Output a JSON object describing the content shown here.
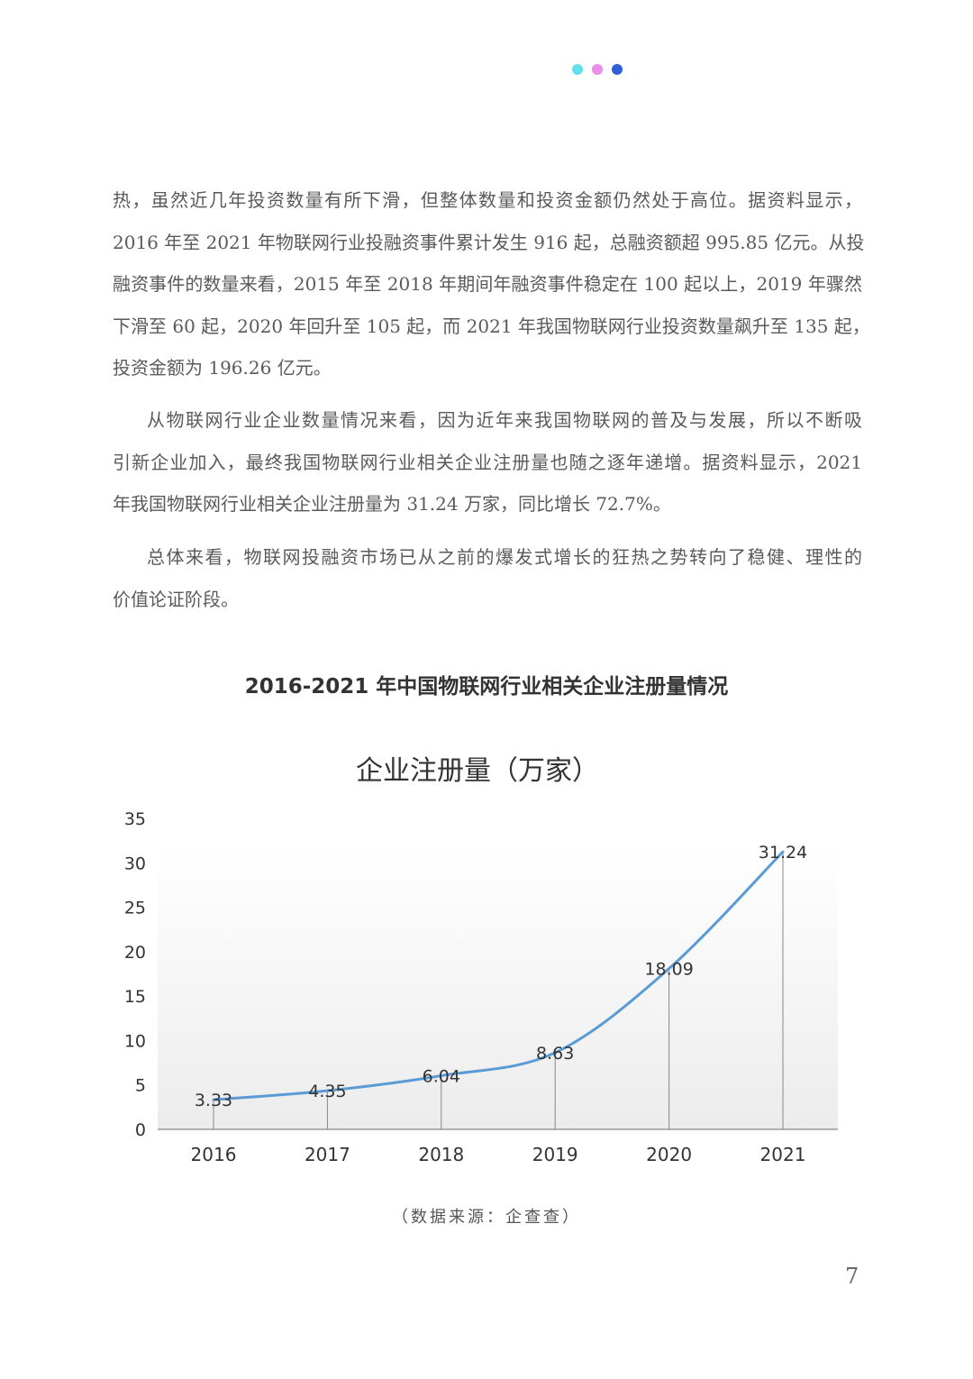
{
  "decor": {
    "dot_colors": [
      "#5fe0eb",
      "#ea8ee9",
      "#2f5fd8"
    ]
  },
  "paragraphs": [
    {
      "lines": [
        "热，虽然近几年投资数量有所下滑，但整体数量和投资金额仍然处于高位。据资料显示，",
        "2016 年至 2021 年物联网行业投融资事件累计发生 916 起，总融资额超 995.85 亿元。从投",
        "融资事件的数量来看，2015 年至 2018 年期间年融资事件稳定在 100 起以上，2019 年骤然",
        "下滑至 60 起，2020 年回升至 105 起，而 2021 年我国物联网行业投资数量飙升至 135 起，",
        "投资金额为 196.26 亿元。"
      ]
    },
    {
      "lines": [
        "从物联网行业企业数量情况来看，因为近年来我国物联网的普及与发展，所以不断吸",
        "引新企业加入，最终我国物联网行业相关企业注册量也随之逐年递增。据资料显示，2021",
        "年我国物联网行业相关企业注册量为 31.24 万家，同比增长 72.7%。"
      ]
    },
    {
      "lines": [
        "总体来看，物联网投融资市场已从之前的爆发式增长的狂热之势转向了稳健、理性的",
        "价值论证阶段。"
      ]
    }
  ],
  "figure_title": "2016-2021 年中国物联网行业相关企业注册量情况",
  "chart_data": {
    "type": "line",
    "title": "企业注册量（万家）",
    "categories": [
      "2016",
      "2017",
      "2018",
      "2019",
      "2020",
      "2021"
    ],
    "series": [
      {
        "values": [
          3.33,
          4.35,
          6.04,
          8.63,
          18.09,
          31.24
        ],
        "color": "#5b9bd5"
      }
    ],
    "data_labels": [
      "3.33",
      "4.35",
      "6.04",
      "8.63",
      "18.09",
      "31.24"
    ],
    "yticks": [
      "0",
      "5",
      "10",
      "15",
      "20",
      "25",
      "30",
      "35"
    ],
    "ylim": [
      0,
      35
    ],
    "grid": false,
    "drop_lines": true
  },
  "source": "（数据来源：企查查）",
  "page_number": "7"
}
